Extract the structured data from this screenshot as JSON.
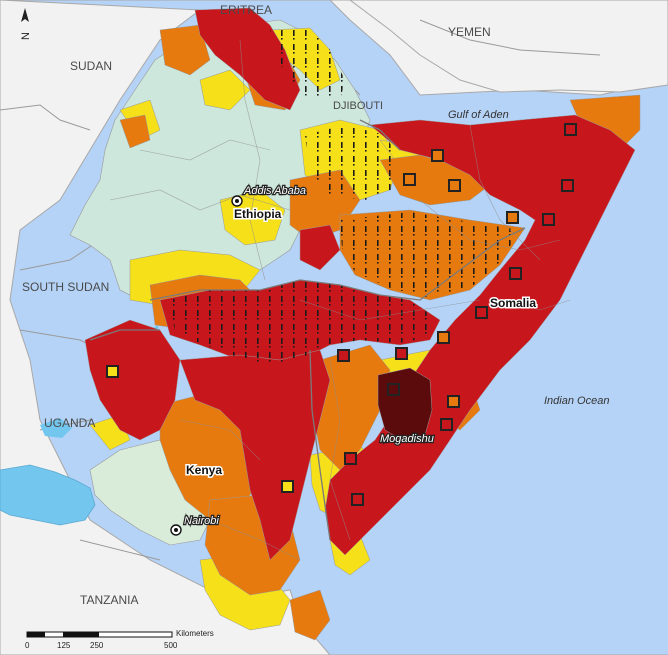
{
  "map": {
    "north_label": "N",
    "country_labels": {
      "eritrea": "ERITREA",
      "yemen": "YEMEN",
      "sudan": "SUDAN",
      "djibouti": "DJIBOUTI",
      "south_sudan": "SOUTH SUDAN",
      "uganda": "UGANDA",
      "tanzania": "TANZANIA"
    },
    "water_labels": {
      "gulf_of_aden": "Gulf of Aden",
      "indian_ocean": "Indian Ocean"
    },
    "focus_countries": {
      "ethiopia": "Ethiopia",
      "somalia": "Somalia",
      "kenya": "Kenya"
    },
    "capitals": {
      "addis_ababa": "Addis Ababa",
      "mogadishu": "Mogadishu",
      "nairobi": "Nairobi"
    },
    "phase_colors": {
      "minimal": "#cde7dc",
      "stressed": "#f5e01a",
      "crisis": "#e67a0f",
      "emergency": "#c8161d",
      "famine_risk": "#5b0b0b",
      "water": "#b5d3f7",
      "lake": "#73c7ef",
      "land_outside": "#f2f2f2"
    },
    "scale_bar": {
      "ticks": [
        "0",
        "125",
        "250",
        "500"
      ],
      "unit": "Kilometers"
    }
  }
}
